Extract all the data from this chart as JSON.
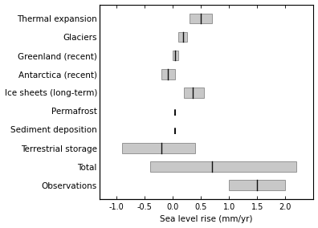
{
  "categories": [
    "Thermal expansion",
    "Glaciers",
    "Greenland (recent)",
    "Antarctica (recent)",
    "Ice sheets (long-term)",
    "Permafrost",
    "Sediment deposition",
    "Terrestrial storage",
    "Total",
    "Observations"
  ],
  "bars": [
    {
      "low": 0.3,
      "high": 0.7,
      "median": 0.5,
      "type": "box"
    },
    {
      "low": 0.1,
      "high": 0.25,
      "median": 0.18,
      "type": "box"
    },
    {
      "low": 0.0,
      "high": 0.1,
      "median": 0.05,
      "type": "box"
    },
    {
      "low": -0.2,
      "high": 0.05,
      "median": -0.08,
      "type": "box"
    },
    {
      "low": 0.2,
      "high": 0.55,
      "median": 0.35,
      "type": "box"
    },
    {
      "low": 0.0,
      "high": 0.1,
      "median": 0.05,
      "type": "dashed"
    },
    {
      "low": 0.0,
      "high": 0.1,
      "median": 0.05,
      "type": "dashed"
    },
    {
      "low": -0.9,
      "high": 0.4,
      "median": -0.2,
      "type": "box"
    },
    {
      "low": -0.4,
      "high": 2.2,
      "median": 0.7,
      "type": "box"
    },
    {
      "low": 1.0,
      "high": 2.0,
      "median": 1.5,
      "type": "box"
    }
  ],
  "bar_height": 0.55,
  "bar_color": "#c8c8c8",
  "bar_edge_color": "#888888",
  "median_color": "#111111",
  "xlim": [
    -1.3,
    2.5
  ],
  "xticks": [
    -1.0,
    -0.5,
    0.0,
    0.5,
    1.0,
    1.5,
    2.0
  ],
  "xtick_labels": [
    "-1.0",
    "-0.5",
    "0.0",
    "0.5",
    "1.0",
    "1.5",
    "2.0"
  ],
  "xlabel": "Sea level rise (mm/yr)",
  "xlabel_fontsize": 7.5,
  "tick_fontsize": 7,
  "label_fontsize": 7.5,
  "fig_bg": "#ffffff",
  "ax_bg": "#ffffff"
}
